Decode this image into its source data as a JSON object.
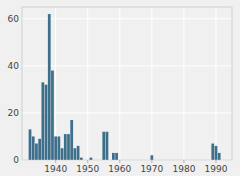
{
  "chart_data": {
    "type": "bar",
    "title": "",
    "color": "#3d6e8a",
    "x": [
      1932,
      1933,
      1934,
      1935,
      1936,
      1937,
      1938,
      1939,
      1940,
      1941,
      1942,
      1943,
      1944,
      1945,
      1946,
      1947,
      1948,
      1949,
      1950,
      1951,
      1952,
      1953,
      1954,
      1955,
      1956,
      1957,
      1958,
      1959,
      1960,
      1961,
      1962,
      1963,
      1964,
      1965,
      1966,
      1967,
      1968,
      1969,
      1970,
      1971,
      1972,
      1973,
      1974,
      1975,
      1976,
      1977,
      1978,
      1979,
      1980,
      1981,
      1982,
      1983,
      1984,
      1985,
      1986,
      1987,
      1988,
      1989,
      1990,
      1991,
      1992,
      1993
    ],
    "values": [
      13,
      10,
      7,
      9,
      33,
      32,
      62,
      38,
      10,
      10,
      5,
      11,
      11,
      17,
      5,
      6,
      1,
      0,
      0,
      1,
      0,
      0,
      0,
      12,
      12,
      0,
      3,
      3,
      0,
      0,
      0,
      0,
      0,
      0,
      0,
      0,
      0,
      0,
      2,
      0,
      0,
      0,
      0,
      0,
      0,
      0,
      0,
      0,
      0,
      0,
      0,
      0,
      0,
      0,
      0,
      0,
      0,
      7,
      6,
      3,
      0,
      0
    ],
    "xlim": [
      1929.5,
      1995
    ],
    "xticks": [
      1940,
      1950,
      1960,
      1970,
      1980,
      1990
    ],
    "ylim": [
      0,
      65
    ],
    "yticks": [
      0,
      20,
      40,
      60
    ],
    "grid": true
  }
}
